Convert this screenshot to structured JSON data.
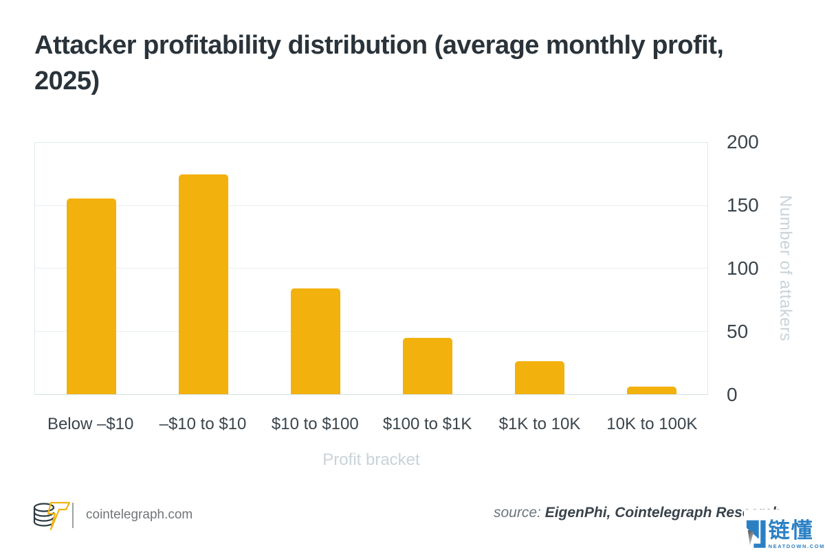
{
  "title": "Attacker profitability distribution (average monthly profit, 2025)",
  "chart_data": {
    "type": "bar",
    "categories": [
      "Below –$10",
      "–$10 to $10",
      "$10 to $100",
      "$100 to $1K",
      "$1K to 10K",
      "10K to 100K"
    ],
    "values": [
      156,
      175,
      84,
      45,
      26,
      6
    ],
    "title": "Attacker profitability distribution (average monthly profit, 2025)",
    "xlabel": "Profit bracket",
    "ylabel": "Number of attakers",
    "ylim": [
      0,
      200
    ],
    "yticks": [
      0,
      50,
      100,
      150,
      200
    ],
    "grid": true,
    "legend": "none",
    "bar_color": "#f2b10d"
  },
  "footer": {
    "site": "cointelegraph.com",
    "source_prefix": "source: ",
    "source_value": "EigenPhi, Cointelegraph Research"
  },
  "watermark": {
    "cn_text": "链懂",
    "domain": "NEATDOWN.COM",
    "blue": "#2b80c4"
  },
  "icons": {
    "logo": "cointelegraph-coin-bolt-logo",
    "watermark_mark": "neatdown-l-mark"
  },
  "colors": {
    "bar": "#f2b10d",
    "title_text": "#2a333a",
    "axis_text": "#3a444b",
    "muted_label": "#c9d3d9",
    "gridline": "#e6eef1",
    "footer_text": "#707579",
    "logo_yellow": "#f0b310",
    "logo_dark": "#2b3a42"
  }
}
